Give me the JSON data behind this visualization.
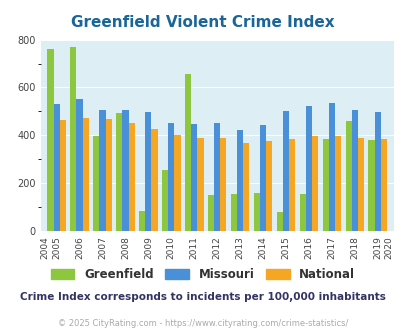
{
  "title": "Greenfield Violent Crime Index",
  "years": [
    2004,
    2005,
    2006,
    2007,
    2008,
    2009,
    2010,
    2011,
    2012,
    2013,
    2014,
    2015,
    2016,
    2017,
    2018,
    2019,
    2020
  ],
  "greenfield": [
    null,
    760,
    770,
    395,
    495,
    85,
    255,
    655,
    150,
    155,
    160,
    80,
    155,
    385,
    460,
    380,
    null
  ],
  "missouri": [
    null,
    530,
    550,
    505,
    505,
    497,
    452,
    448,
    453,
    422,
    443,
    500,
    522,
    533,
    505,
    497,
    null
  ],
  "national": [
    null,
    465,
    473,
    467,
    453,
    425,
    400,
    388,
    388,
    368,
    377,
    383,
    397,
    399,
    387,
    383,
    null
  ],
  "greenfield_color": "#8dc63f",
  "missouri_color": "#4a90d9",
  "national_color": "#f5a623",
  "bg_color": "#ddeef5",
  "plot_bg": "#ddeef5",
  "title_color": "#1a6699",
  "ylim": [
    0,
    800
  ],
  "yticks": [
    0,
    200,
    400,
    600,
    800
  ],
  "subtitle": "Crime Index corresponds to incidents per 100,000 inhabitants",
  "subtitle_color": "#333366",
  "footer": "© 2025 CityRating.com - https://www.cityrating.com/crime-statistics/",
  "footer_color": "#aaaaaa",
  "legend_labels": [
    "Greenfield",
    "Missouri",
    "National"
  ],
  "legend_label_color": "#333333"
}
